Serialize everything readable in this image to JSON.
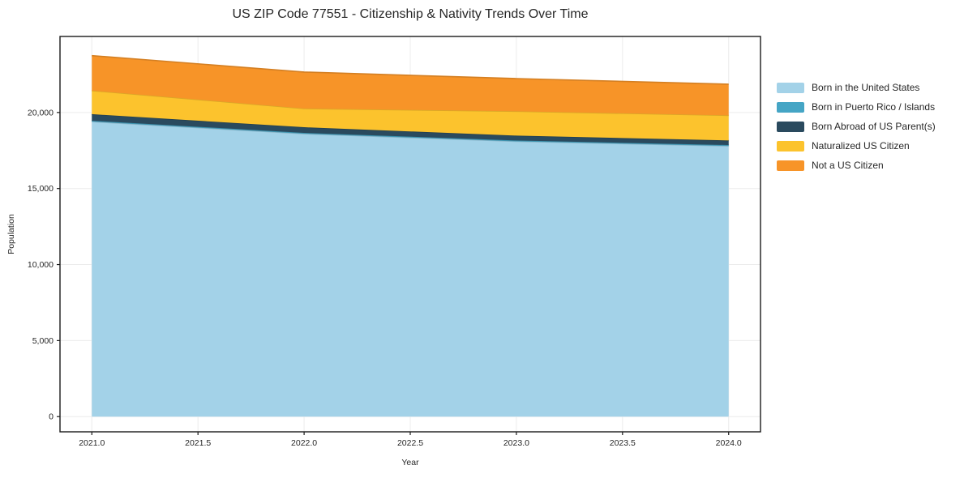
{
  "title": "US ZIP Code 77551 - Citizenship & Nativity Trends Over Time",
  "chart_data": {
    "type": "area",
    "stacked": true,
    "title": "US ZIP Code 77551 - Citizenship & Nativity Trends Over Time",
    "xlabel": "Year",
    "ylabel": "Population",
    "x": [
      2021,
      2022,
      2023,
      2024
    ],
    "series": [
      {
        "name": "Born in the United States",
        "color": "#a3d2e8",
        "values": [
          19400,
          18600,
          18100,
          17800
        ]
      },
      {
        "name": "Born in Puerto Rico / Islands",
        "color": "#45a5c5",
        "values": [
          60,
          60,
          60,
          60
        ]
      },
      {
        "name": "Born Abroad of US Parent(s)",
        "color": "#2a4a5e",
        "values": [
          430,
          370,
          320,
          300
        ]
      },
      {
        "name": "Naturalized US Citizen",
        "color": "#fcc32d",
        "values": [
          1550,
          1230,
          1600,
          1650
        ]
      },
      {
        "name": "Not a US Citizen",
        "color": "#f79428",
        "values": [
          2300,
          2400,
          2150,
          2050
        ]
      }
    ],
    "xlim": [
      2020.85,
      2024.15
    ],
    "ylim": [
      -1000,
      25000
    ],
    "xticks": [
      {
        "v": 2021.0,
        "label": "2021.0"
      },
      {
        "v": 2021.5,
        "label": "2021.5"
      },
      {
        "v": 2022.0,
        "label": "2022.0"
      },
      {
        "v": 2022.5,
        "label": "2022.5"
      },
      {
        "v": 2023.0,
        "label": "2023.0"
      },
      {
        "v": 2023.5,
        "label": "2023.5"
      },
      {
        "v": 2024.0,
        "label": "2024.0"
      }
    ],
    "yticks": [
      {
        "v": 0,
        "label": "0"
      },
      {
        "v": 5000,
        "label": "5,000"
      },
      {
        "v": 10000,
        "label": "10,000"
      },
      {
        "v": 15000,
        "label": "15,000"
      },
      {
        "v": 20000,
        "label": "20,000"
      }
    ],
    "grid": true,
    "legend_position": "right-outside",
    "colors": {
      "grid": "#ececec",
      "spine": "#1a1a1a",
      "tick_label": "#262626",
      "background": "#ffffff"
    }
  }
}
